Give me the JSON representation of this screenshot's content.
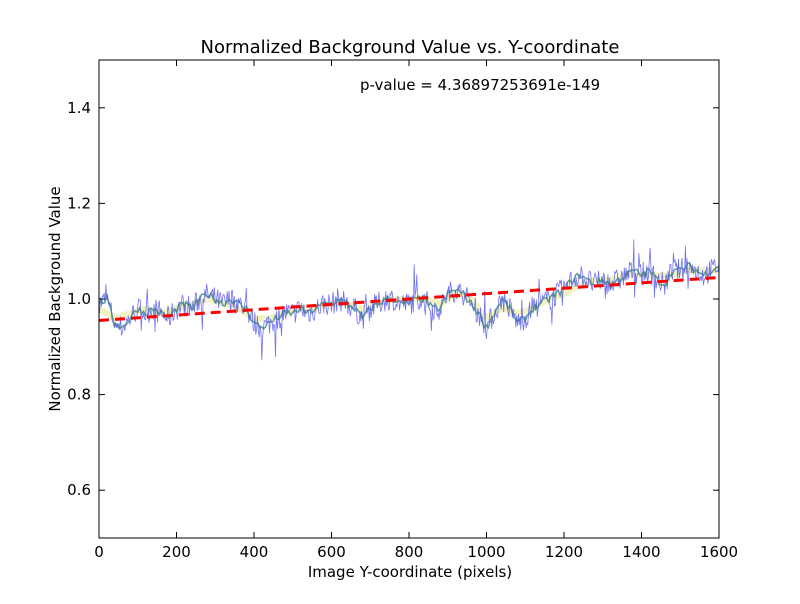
{
  "chart_data": {
    "type": "line",
    "title": "Normalized Background Value vs. Y-coordinate",
    "xlabel": "Image Y-coordinate (pixels)",
    "ylabel": "Normalized Background Value",
    "annotation": "p-value = 4.36897253691e-149",
    "xlim": [
      0,
      1600
    ],
    "ylim": [
      0.5,
      1.5
    ],
    "xticks": [
      0,
      200,
      400,
      600,
      800,
      1000,
      1200,
      1400,
      1600
    ],
    "xtick_labels": [
      "0",
      "200",
      "400",
      "600",
      "800",
      "1000",
      "1200",
      "1400",
      "1600"
    ],
    "yticks": [
      0.6,
      0.8,
      1.0,
      1.2,
      1.4
    ],
    "ytick_labels": [
      "0.6",
      "0.8",
      "1.0",
      "1.2",
      "1.4"
    ],
    "grid": false,
    "series": [
      {
        "style": "raw",
        "color": "#5b5bf0",
        "x": [
          0,
          20,
          40,
          60,
          80,
          100,
          120,
          140,
          160,
          180,
          200,
          220,
          240,
          260,
          280,
          300,
          320,
          340,
          360,
          380,
          400,
          420,
          440,
          460,
          480,
          500,
          520,
          540,
          560,
          580,
          600,
          620,
          640,
          660,
          680,
          700,
          720,
          740,
          760,
          780,
          800,
          820,
          840,
          860,
          880,
          900,
          920,
          940,
          960,
          980,
          1000,
          1020,
          1040,
          1060,
          1080,
          1100,
          1120,
          1140,
          1160,
          1180,
          1200,
          1220,
          1240,
          1260,
          1280,
          1300,
          1320,
          1340,
          1360,
          1380,
          1400,
          1420,
          1440,
          1460,
          1480,
          1500,
          1520,
          1540,
          1560,
          1580,
          1600
        ],
        "y": [
          0.99,
          1.0,
          0.95,
          0.94,
          0.96,
          0.98,
          0.97,
          0.98,
          0.97,
          0.96,
          0.98,
          0.99,
          0.98,
          1.0,
          1.01,
          1.0,
          0.99,
          1.0,
          0.99,
          0.98,
          0.95,
          0.94,
          0.95,
          0.96,
          0.97,
          0.97,
          0.98,
          0.97,
          0.98,
          0.99,
          0.99,
          1.0,
          0.99,
          0.98,
          0.96,
          0.98,
          0.99,
          1.0,
          1.0,
          0.99,
          0.99,
          1.0,
          1.0,
          0.98,
          0.98,
          1.01,
          1.02,
          1.01,
          0.99,
          0.97,
          0.94,
          0.97,
          1.0,
          0.98,
          0.95,
          0.96,
          0.98,
          0.99,
          1.0,
          1.01,
          1.02,
          1.04,
          1.05,
          1.04,
          1.03,
          1.04,
          1.03,
          1.04,
          1.05,
          1.06,
          1.05,
          1.06,
          1.04,
          1.03,
          1.06,
          1.06,
          1.07,
          1.06,
          1.05,
          1.06,
          1.07
        ]
      },
      {
        "style": "smoothed",
        "color": "#e8e890",
        "x": [
          0,
          40,
          80,
          120,
          160,
          200,
          240,
          280,
          320,
          360,
          400,
          440,
          480,
          520,
          560,
          600,
          640,
          680,
          720,
          760,
          800,
          840,
          880,
          920,
          960,
          1000,
          1040,
          1080,
          1120,
          1160,
          1200,
          1240,
          1280,
          1320,
          1360,
          1400,
          1440,
          1480,
          1520,
          1560,
          1600
        ],
        "y": [
          0.98,
          0.96,
          0.97,
          0.98,
          0.97,
          0.98,
          0.99,
          1.0,
          0.99,
          0.98,
          0.96,
          0.96,
          0.97,
          0.98,
          0.98,
          0.99,
          0.99,
          0.98,
          0.99,
          1.0,
          1.0,
          1.0,
          0.99,
          1.01,
          1.0,
          0.96,
          0.98,
          0.97,
          0.98,
          1.0,
          1.01,
          1.03,
          1.04,
          1.04,
          1.05,
          1.05,
          1.05,
          1.05,
          1.06,
          1.06,
          1.06
        ]
      },
      {
        "style": "fit",
        "color": "#ff0000",
        "x": [
          0,
          1600
        ],
        "y": [
          0.955,
          1.045
        ]
      }
    ]
  }
}
